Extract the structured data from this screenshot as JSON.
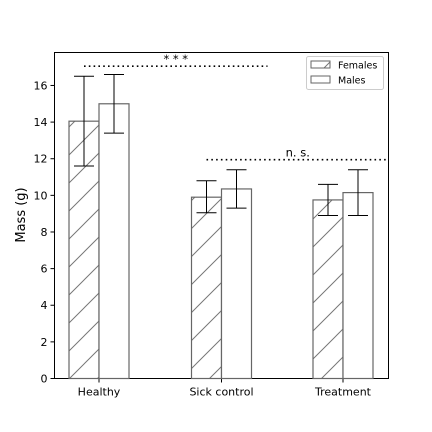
{
  "chart_data": {
    "type": "bar",
    "title": "",
    "xlabel": "",
    "ylabel": "Mass (g)",
    "categories": [
      "Healthy",
      "Sick control",
      "Treatment"
    ],
    "ylim": [
      0,
      17.8
    ],
    "yticks": [
      0,
      2,
      4,
      6,
      8,
      10,
      12,
      14,
      16
    ],
    "grid": false,
    "legend_position": "top-right",
    "series": [
      {
        "name": "Females",
        "pattern": "hatched",
        "edge_color": "#666666",
        "values": [
          14.05,
          9.9,
          9.75
        ],
        "errors": [
          [
            11.6,
            16.5
          ],
          [
            9.05,
            10.8
          ],
          [
            8.9,
            10.6
          ]
        ]
      },
      {
        "name": "Males",
        "pattern": "plain",
        "edge_color": "#666666",
        "values": [
          15.0,
          10.35,
          10.15
        ],
        "errors": [
          [
            13.4,
            16.6
          ],
          [
            9.3,
            11.4
          ],
          [
            8.9,
            11.4
          ]
        ]
      }
    ],
    "annotations": [
      {
        "text": "* * *",
        "from_category": "Healthy",
        "to_category": "Sick control",
        "y": 17.05
      },
      {
        "text": "n. s.",
        "from_category": "Sick control",
        "to_category": "Treatment",
        "y": 11.95
      }
    ]
  }
}
